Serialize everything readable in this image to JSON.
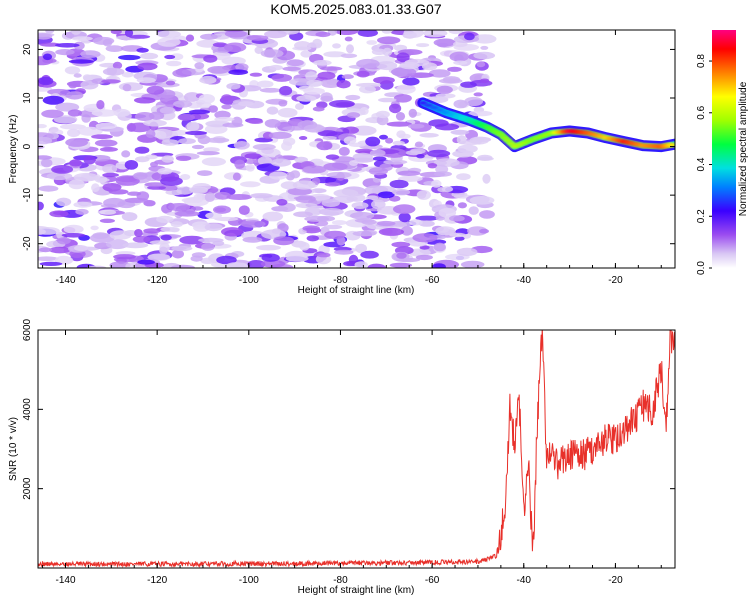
{
  "title": "KOM5.2025.083.01.33.G07",
  "chart_data": [
    {
      "type": "heatmap",
      "xlabel": "Height of straight line (km)",
      "ylabel": "Frequency (Hz)",
      "xlim": [
        -146,
        -7
      ],
      "ylim": [
        -25,
        24
      ],
      "xticks": [
        "-140",
        "-120",
        "-100",
        "-80",
        "-60",
        "-40",
        "-20"
      ],
      "xtick_values": [
        -140,
        -120,
        -100,
        -80,
        -60,
        -40,
        -20
      ],
      "yticks": [
        "-20",
        "-10",
        "0",
        "10",
        "20"
      ],
      "ytick_values": [
        -20,
        -10,
        0,
        10,
        20
      ],
      "noise_region_x": [
        -146,
        -48
      ],
      "ridge": {
        "x": [
          -62,
          -57,
          -52,
          -48,
          -45,
          -42,
          -38,
          -34,
          -30,
          -26,
          -22,
          -18,
          -14,
          -10,
          -7
        ],
        "y": [
          9,
          7,
          5.5,
          4,
          2.5,
          0,
          1.5,
          2.8,
          3.2,
          2.8,
          1.8,
          1,
          0.2,
          0,
          0.5
        ],
        "amplitude": [
          0.25,
          0.35,
          0.45,
          0.55,
          0.6,
          0.65,
          0.6,
          0.62,
          0.95,
          0.85,
          0.75,
          0.9,
          0.8,
          0.85,
          0.7
        ]
      },
      "colorbar": {
        "label": "Normalized spectral amplitude",
        "range": [
          0,
          0.92
        ],
        "ticks": [
          "0.0",
          "0.2",
          "0.4",
          "0.6",
          "0.8"
        ],
        "tick_values": [
          0,
          0.2,
          0.4,
          0.6,
          0.8
        ]
      }
    },
    {
      "type": "line",
      "xlabel": "Height of straight line (km)",
      "ylabel": "SNR (10 * v/v)",
      "xlim": [
        -146,
        -7
      ],
      "ylim": [
        0,
        6000
      ],
      "xticks": [
        "-140",
        "-120",
        "-100",
        "-80",
        "-60",
        "-40",
        "-20"
      ],
      "xtick_values": [
        -140,
        -120,
        -100,
        -80,
        -60,
        -40,
        -20
      ],
      "yticks": [
        "2000",
        "4000",
        "6000"
      ],
      "ytick_values": [
        2000,
        4000,
        6000
      ],
      "series": [
        {
          "color": "#e8302a",
          "x": [
            -146,
            -120,
            -90,
            -60,
            -50,
            -46,
            -44,
            -43,
            -42,
            -41,
            -40,
            -39,
            -38,
            -37,
            -36,
            -35,
            -34,
            -32,
            -30,
            -28,
            -26,
            -24,
            -22,
            -20,
            -18,
            -16,
            -14,
            -12,
            -10,
            -9,
            -8,
            -7
          ],
          "y": [
            100,
            100,
            110,
            140,
            160,
            300,
            1500,
            4200,
            3000,
            4300,
            1200,
            2700,
            300,
            3800,
            6000,
            2800,
            2800,
            2600,
            2900,
            2800,
            2900,
            3100,
            3300,
            3200,
            3500,
            3700,
            4100,
            3900,
            5100,
            3300,
            5900,
            5600
          ]
        }
      ]
    }
  ]
}
